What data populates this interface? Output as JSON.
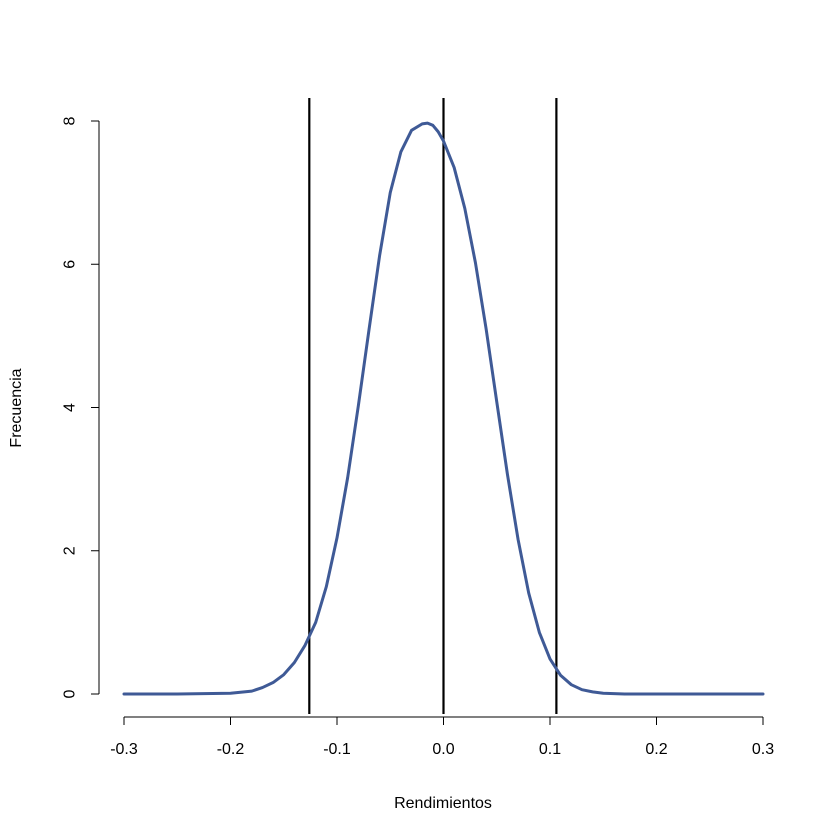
{
  "chart_data": {
    "type": "line",
    "title": "",
    "xlabel": "Rendimientos",
    "ylabel": "Frecuencia",
    "xlim": [
      -0.3,
      0.3
    ],
    "ylim": [
      0,
      8
    ],
    "x_ticks": [
      -0.3,
      -0.2,
      -0.1,
      0.0,
      0.1,
      0.2,
      0.3
    ],
    "x_tick_labels": [
      "-0.3",
      "-0.2",
      "-0.1",
      "0.0",
      "0.1",
      "0.2",
      "0.3"
    ],
    "y_ticks": [
      0,
      2,
      4,
      6,
      8
    ],
    "y_tick_labels": [
      "0",
      "2",
      "4",
      "6",
      "8"
    ],
    "grid": false,
    "series": [
      {
        "color": "#3f5a96",
        "x": [
          -0.3,
          -0.25,
          -0.2,
          -0.18,
          -0.17,
          -0.16,
          -0.15,
          -0.14,
          -0.13,
          -0.12,
          -0.11,
          -0.1,
          -0.09,
          -0.08,
          -0.07,
          -0.06,
          -0.05,
          -0.04,
          -0.03,
          -0.02,
          -0.015,
          -0.01,
          -0.005,
          0.0,
          0.01,
          0.02,
          0.03,
          0.04,
          0.05,
          0.06,
          0.07,
          0.08,
          0.09,
          0.1,
          0.11,
          0.12,
          0.13,
          0.14,
          0.15,
          0.16,
          0.17,
          0.18,
          0.2,
          0.25,
          0.3
        ],
        "y": [
          0.0,
          0.0,
          0.01,
          0.04,
          0.09,
          0.16,
          0.27,
          0.44,
          0.68,
          1.0,
          1.5,
          2.18,
          3.02,
          4.02,
          5.08,
          6.12,
          7.0,
          7.57,
          7.87,
          7.96,
          7.97,
          7.94,
          7.85,
          7.72,
          7.35,
          6.78,
          6.02,
          5.1,
          4.08,
          3.07,
          2.16,
          1.41,
          0.86,
          0.49,
          0.26,
          0.13,
          0.06,
          0.03,
          0.01,
          0.005,
          0.0,
          0.0,
          0.0,
          0.0,
          0.0
        ]
      }
    ],
    "vlines": [
      {
        "x": -0.126,
        "color": "#000000"
      },
      {
        "x": 0.0,
        "color": "#000000"
      },
      {
        "x": 0.106,
        "color": "#000000"
      }
    ]
  }
}
